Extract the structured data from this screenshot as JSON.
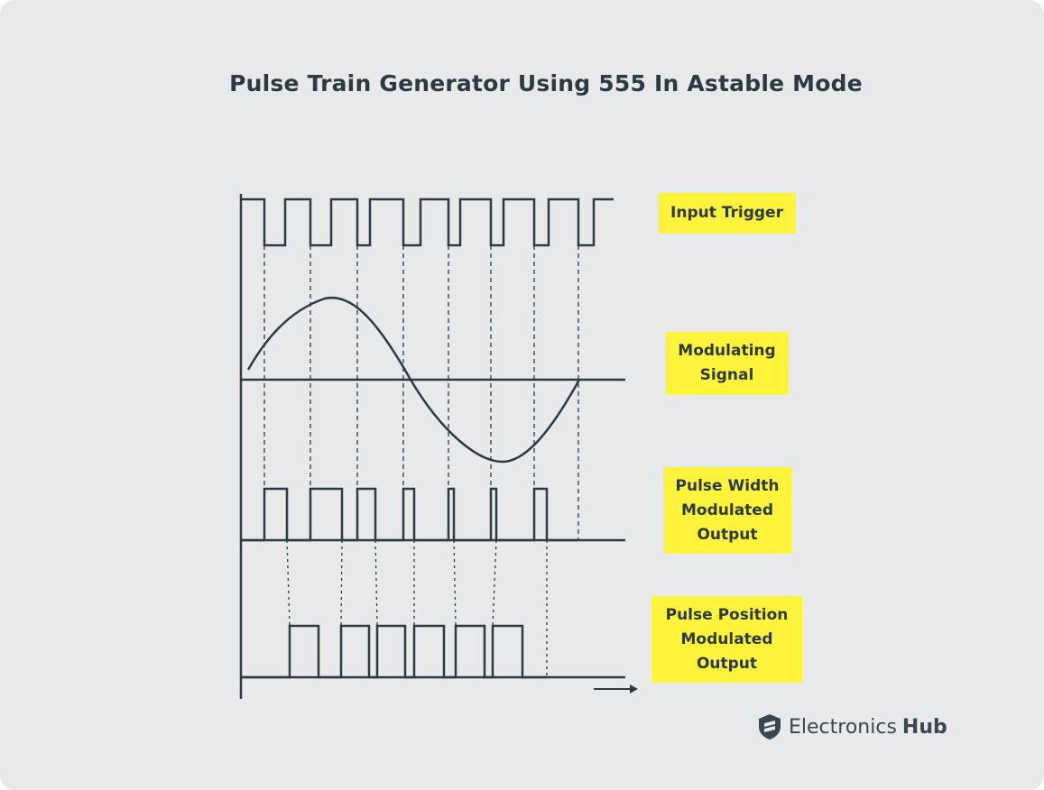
{
  "title": "Pulse Train Generator Using 555 In Astable Mode",
  "signals": [
    {
      "id": "input-trigger",
      "label": "Input Trigger"
    },
    {
      "id": "modulating-signal",
      "label": "Modulating\nSignal"
    },
    {
      "id": "pwm-output",
      "label": "Pulse Width\nModulated\nOutput"
    },
    {
      "id": "ppm-output",
      "label": "Pulse Position\nModulated\nOutput"
    }
  ],
  "brand": {
    "name": "Electronics",
    "suffix": "Hub",
    "icon": "electronics-hub-logo-icon"
  },
  "colors": {
    "background": "#e8e9eb",
    "line": "#2c3a42",
    "label_bg": "#fff33b"
  }
}
